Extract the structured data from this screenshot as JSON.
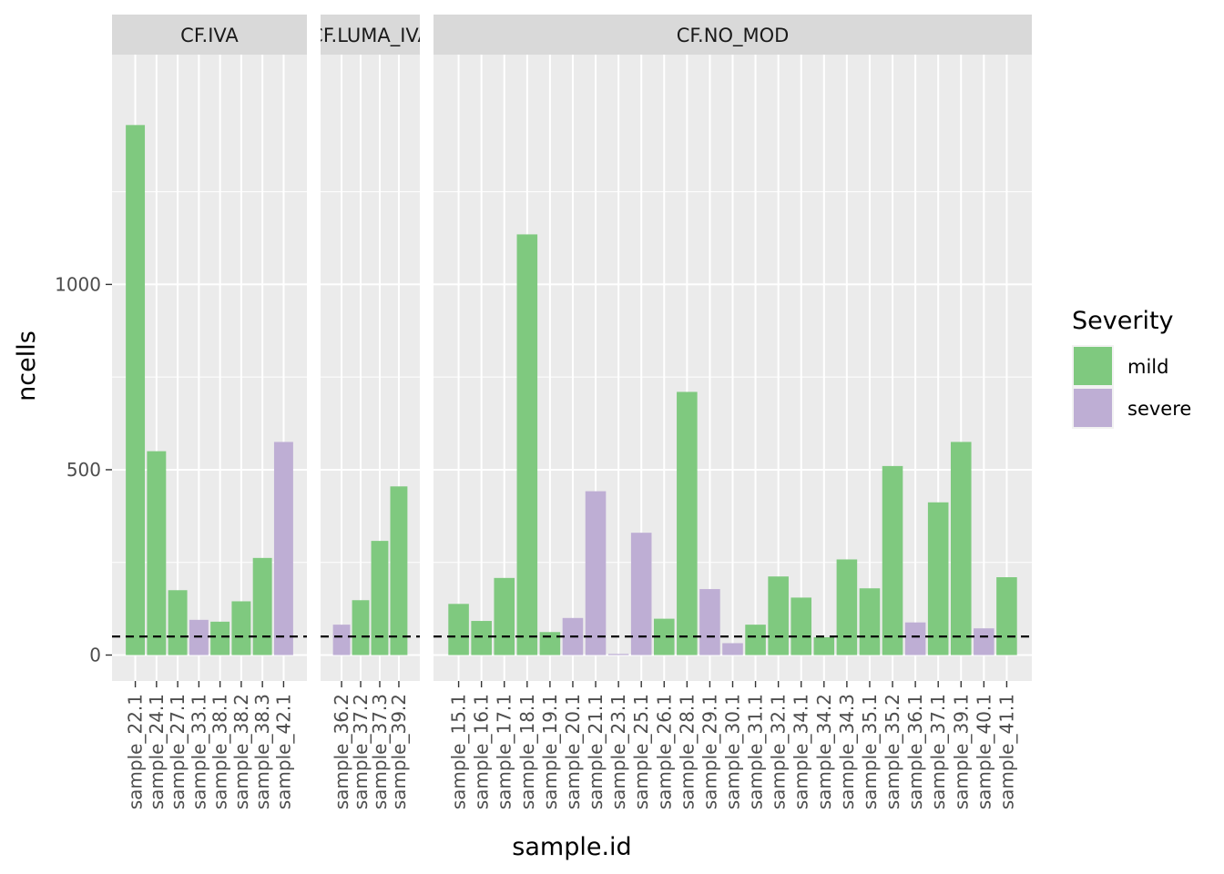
{
  "chart_data": {
    "type": "bar",
    "xlabel": "sample.id",
    "ylabel": "ncells",
    "ylim": [
      -70,
      1620
    ],
    "yticks": [
      0,
      500,
      1000
    ],
    "threshold": 50,
    "legend": {
      "title": "Severity",
      "position": "right",
      "entries": [
        {
          "label": "mild",
          "color": "#7fc97f"
        },
        {
          "label": "severe",
          "color": "#beaed4"
        }
      ]
    },
    "colors": {
      "mild": "#7fc97f",
      "severe": "#beaed4",
      "panel": "#ebebeb",
      "strip": "#d9d9d9",
      "grid": "#ffffff"
    },
    "facets": [
      {
        "name": "CF.IVA",
        "categories": [
          "sample_22.1",
          "sample_24.1",
          "sample_27.1",
          "sample_33.1",
          "sample_38.1",
          "sample_38.2",
          "sample_38.3",
          "sample_42.1"
        ],
        "values": [
          1430,
          550,
          175,
          95,
          90,
          145,
          262,
          575
        ],
        "severity": [
          "mild",
          "mild",
          "mild",
          "severe",
          "mild",
          "mild",
          "mild",
          "severe"
        ]
      },
      {
        "name": "CF.LUMA_IVA",
        "categories": [
          "sample_36.2",
          "sample_37.2",
          "sample_37.3",
          "sample_39.2"
        ],
        "values": [
          82,
          148,
          308,
          455
        ],
        "severity": [
          "severe",
          "mild",
          "mild",
          "mild"
        ]
      },
      {
        "name": "CF.NO_MOD",
        "categories": [
          "sample_15.1",
          "sample_16.1",
          "sample_17.1",
          "sample_18.1",
          "sample_19.1",
          "sample_20.1",
          "sample_21.1",
          "sample_23.1",
          "sample_25.1",
          "sample_26.1",
          "sample_28.1",
          "sample_29.1",
          "sample_30.1",
          "sample_31.1",
          "sample_32.1",
          "sample_34.1",
          "sample_34.2",
          "sample_34.3",
          "sample_35.1",
          "sample_35.2",
          "sample_36.1",
          "sample_37.1",
          "sample_39.1",
          "sample_40.1",
          "sample_41.1"
        ],
        "values": [
          138,
          92,
          208,
          1135,
          62,
          100,
          442,
          3,
          330,
          98,
          710,
          178,
          32,
          82,
          212,
          155,
          48,
          258,
          180,
          510,
          88,
          412,
          575,
          72,
          210
        ],
        "severity": [
          "mild",
          "mild",
          "mild",
          "mild",
          "mild",
          "severe",
          "severe",
          "severe",
          "severe",
          "mild",
          "mild",
          "severe",
          "severe",
          "mild",
          "mild",
          "mild",
          "mild",
          "mild",
          "mild",
          "mild",
          "severe",
          "mild",
          "mild",
          "severe",
          "mild"
        ]
      }
    ]
  }
}
